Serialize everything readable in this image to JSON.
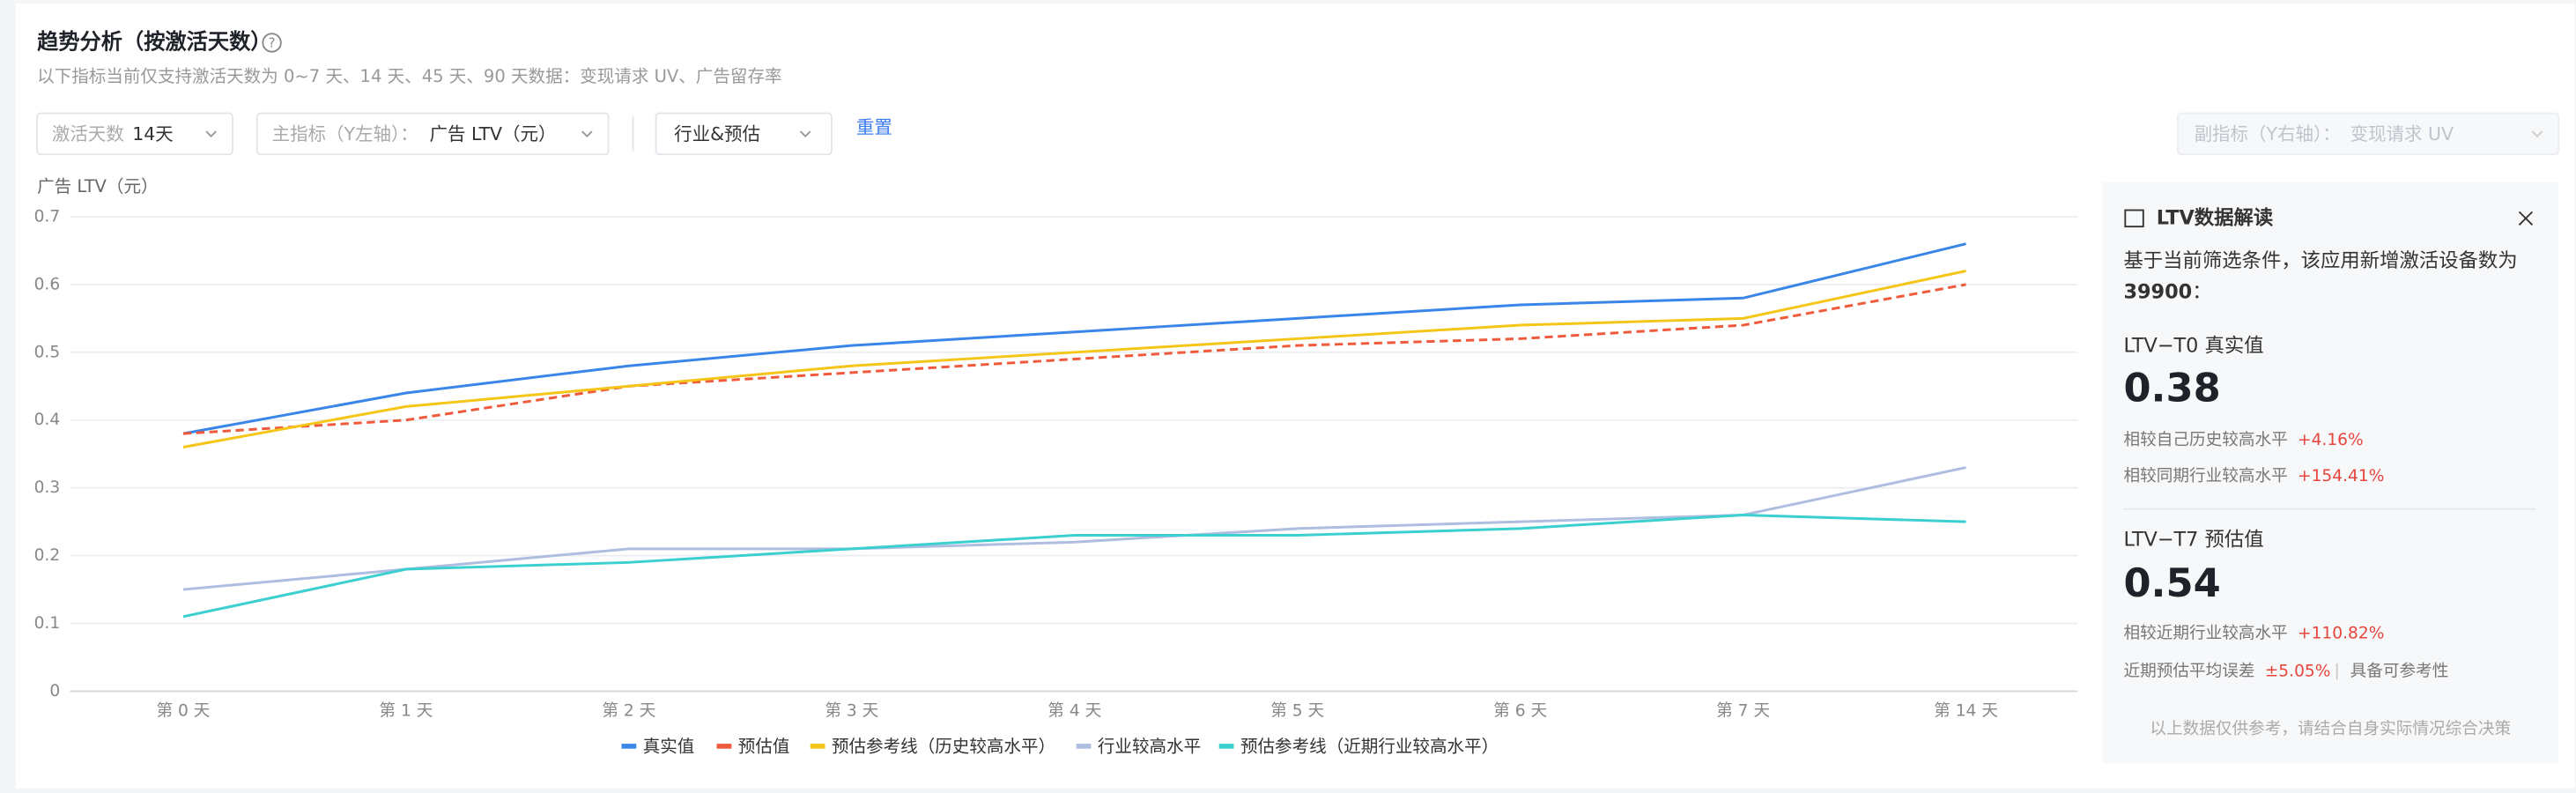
{
  "header": {
    "title": "趋势分析（按激活天数）",
    "subtitle": "以下指标当前仅支持激活天数为 0~7 天、14 天、45 天、90 天数据：变现请求 UV、广告留存率"
  },
  "filters": {
    "days_label": "激活天数",
    "days_value": "14天",
    "primary_label": "主指标（Y左轴）：",
    "primary_value": "广告 LTV（元）",
    "compare_value": "行业&预估",
    "reset": "重置",
    "secondary_label": "副指标（Y右轴）：",
    "secondary_value": "变现请求 UV"
  },
  "chart_data": {
    "type": "line",
    "y_label": "广告 LTV（元）",
    "categories": [
      "第 0 天",
      "第 1 天",
      "第 2 天",
      "第 3 天",
      "第 4 天",
      "第 5 天",
      "第 6 天",
      "第 7 天",
      "第 14 天"
    ],
    "series": [
      {
        "name": "真实值",
        "color": "#3a86e8",
        "values": [
          0.38,
          0.44,
          0.48,
          0.51,
          0.53,
          0.55,
          0.57,
          0.58,
          0.66
        ]
      },
      {
        "name": "预估值",
        "color": "#f05a3c",
        "dashed": true,
        "values": [
          0.38,
          0.4,
          0.45,
          0.47,
          0.49,
          0.51,
          0.52,
          0.54,
          0.6
        ]
      },
      {
        "name": "预估参考线（历史较高水平）",
        "color": "#f5c518",
        "values": [
          0.36,
          0.42,
          0.45,
          0.48,
          0.5,
          0.52,
          0.54,
          0.55,
          0.62
        ]
      },
      {
        "name": "行业较高水平",
        "color": "#aebde0",
        "values": [
          0.15,
          0.18,
          0.21,
          0.21,
          0.22,
          0.24,
          0.25,
          0.26,
          0.33
        ]
      },
      {
        "name": "预估参考线（近期行业较高水平）",
        "color": "#3ccfcf",
        "values": [
          0.11,
          0.18,
          0.19,
          0.21,
          0.23,
          0.23,
          0.24,
          0.26,
          0.25
        ]
      }
    ],
    "ylim": [
      0,
      0.7
    ],
    "yticks": [
      0,
      0.1,
      0.2,
      0.3,
      0.4,
      0.5,
      0.6,
      0.7
    ],
    "grid": true
  },
  "panel": {
    "title": "LTV数据解读",
    "intro": "基于当前筛选条件，该应用新增激活设备数为",
    "device_count": "39900",
    "intro_end": "：",
    "sections": [
      {
        "title": "LTV−T0 真实值",
        "value": "0.38",
        "rows": [
          {
            "label": "相较自己历史较高水平",
            "delta": "+4.16%"
          },
          {
            "label": "相较同期行业较高水平",
            "delta": "+154.41%"
          }
        ]
      },
      {
        "title": "LTV−T7 预估值",
        "value": "0.54",
        "rows": [
          {
            "label": "相较近期行业较高水平",
            "delta": "+110.82%"
          },
          {
            "label": "近期预估平均误差",
            "delta": "±5.05%",
            "note": "具备可参考性"
          }
        ]
      }
    ],
    "footnote": "以上数据仅供参考，请结合自身实际情况综合决策"
  }
}
